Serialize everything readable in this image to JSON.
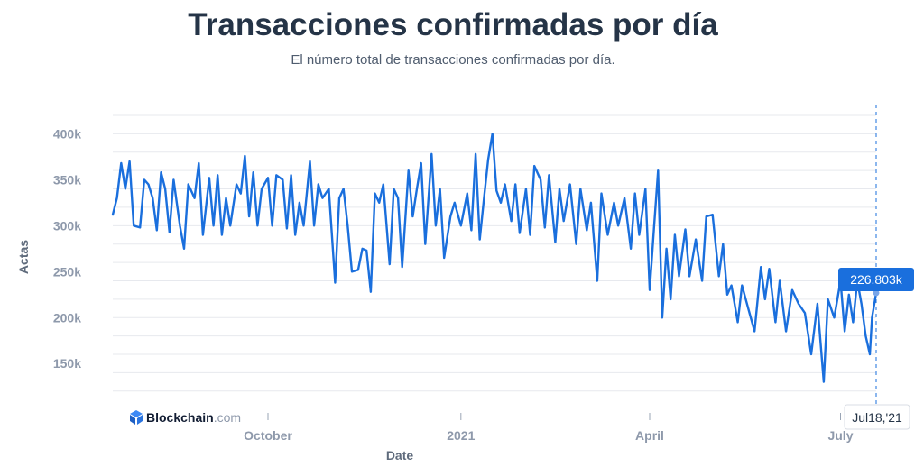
{
  "header": {
    "title": "Transacciones confirmadas por día",
    "subtitle": "El número total de transacciones confirmadas por día."
  },
  "brand": {
    "name": "Blockchain",
    "suffix": ".com",
    "icon": "blockchain-cube-icon"
  },
  "tooltip": {
    "value_label": "226.803k",
    "date_label": "Jul18,'21"
  },
  "colors": {
    "line": "#1a6fdd",
    "grid": "#e7e9ee",
    "title": "#253447",
    "axis_text": "#8e99ab"
  },
  "chart_data": {
    "type": "line",
    "title": "Transacciones confirmadas por día",
    "subtitle": "El número total de transacciones confirmadas por día.",
    "xlabel": "Date",
    "ylabel": "Actas",
    "ylim": [
      110000,
      420000
    ],
    "xlim": [
      "2020-07-19",
      "2021-07-18"
    ],
    "grid": true,
    "y_ticks": [
      {
        "value": 150000,
        "label": "150k"
      },
      {
        "value": 200000,
        "label": "200k"
      },
      {
        "value": 250000,
        "label": "250k"
      },
      {
        "value": 300000,
        "label": "300k"
      },
      {
        "value": 350000,
        "label": "350k"
      },
      {
        "value": 400000,
        "label": "400k"
      }
    ],
    "x_ticks": [
      {
        "date": "2020-10-01",
        "label": "October"
      },
      {
        "date": "2021-01-01",
        "label": "2021"
      },
      {
        "date": "2021-04-01",
        "label": "April"
      },
      {
        "date": "2021-07-01",
        "label": "July"
      }
    ],
    "series": [
      {
        "points": [
          [
            "2020-07-19",
            312000
          ],
          [
            "2020-07-21",
            330000
          ],
          [
            "2020-07-23",
            368000
          ],
          [
            "2020-07-25",
            340000
          ],
          [
            "2020-07-27",
            370000
          ],
          [
            "2020-07-29",
            300000
          ],
          [
            "2020-08-01",
            298000
          ],
          [
            "2020-08-03",
            350000
          ],
          [
            "2020-08-05",
            345000
          ],
          [
            "2020-08-07",
            330000
          ],
          [
            "2020-08-09",
            295000
          ],
          [
            "2020-08-11",
            358000
          ],
          [
            "2020-08-13",
            340000
          ],
          [
            "2020-08-15",
            293000
          ],
          [
            "2020-08-17",
            350000
          ],
          [
            "2020-08-20",
            300000
          ],
          [
            "2020-08-22",
            275000
          ],
          [
            "2020-08-24",
            345000
          ],
          [
            "2020-08-27",
            330000
          ],
          [
            "2020-08-29",
            368000
          ],
          [
            "2020-08-31",
            290000
          ],
          [
            "2020-09-03",
            352000
          ],
          [
            "2020-09-05",
            300000
          ],
          [
            "2020-09-07",
            355000
          ],
          [
            "2020-09-09",
            290000
          ],
          [
            "2020-09-11",
            330000
          ],
          [
            "2020-09-13",
            300000
          ],
          [
            "2020-09-16",
            345000
          ],
          [
            "2020-09-18",
            335000
          ],
          [
            "2020-09-20",
            376000
          ],
          [
            "2020-09-22",
            310000
          ],
          [
            "2020-09-24",
            358000
          ],
          [
            "2020-09-26",
            300000
          ],
          [
            "2020-09-28",
            340000
          ],
          [
            "2020-10-01",
            352000
          ],
          [
            "2020-10-03",
            300000
          ],
          [
            "2020-10-05",
            355000
          ],
          [
            "2020-10-08",
            350000
          ],
          [
            "2020-10-10",
            297000
          ],
          [
            "2020-10-12",
            355000
          ],
          [
            "2020-10-14",
            290000
          ],
          [
            "2020-10-16",
            325000
          ],
          [
            "2020-10-18",
            300000
          ],
          [
            "2020-10-21",
            370000
          ],
          [
            "2020-10-23",
            300000
          ],
          [
            "2020-10-25",
            345000
          ],
          [
            "2020-10-27",
            330000
          ],
          [
            "2020-10-30",
            340000
          ],
          [
            "2020-11-02",
            238000
          ],
          [
            "2020-11-04",
            330000
          ],
          [
            "2020-11-06",
            340000
          ],
          [
            "2020-11-08",
            300000
          ],
          [
            "2020-11-10",
            250000
          ],
          [
            "2020-11-13",
            252000
          ],
          [
            "2020-11-15",
            275000
          ],
          [
            "2020-11-17",
            273000
          ],
          [
            "2020-11-19",
            228000
          ],
          [
            "2020-11-21",
            335000
          ],
          [
            "2020-11-23",
            325000
          ],
          [
            "2020-11-25",
            345000
          ],
          [
            "2020-11-28",
            258000
          ],
          [
            "2020-11-30",
            340000
          ],
          [
            "2020-12-02",
            330000
          ],
          [
            "2020-12-04",
            255000
          ],
          [
            "2020-12-07",
            360000
          ],
          [
            "2020-12-09",
            310000
          ],
          [
            "2020-12-11",
            340000
          ],
          [
            "2020-12-13",
            368000
          ],
          [
            "2020-12-15",
            280000
          ],
          [
            "2020-12-18",
            378000
          ],
          [
            "2020-12-20",
            300000
          ],
          [
            "2020-12-22",
            340000
          ],
          [
            "2020-12-24",
            265000
          ],
          [
            "2020-12-27",
            310000
          ],
          [
            "2020-12-29",
            325000
          ],
          [
            "2021-01-01",
            300000
          ],
          [
            "2021-01-04",
            335000
          ],
          [
            "2021-01-06",
            295000
          ],
          [
            "2021-01-08",
            378000
          ],
          [
            "2021-01-10",
            285000
          ],
          [
            "2021-01-12",
            330000
          ],
          [
            "2021-01-14",
            372000
          ],
          [
            "2021-01-16",
            400000
          ],
          [
            "2021-01-18",
            338000
          ],
          [
            "2021-01-20",
            325000
          ],
          [
            "2021-01-22",
            345000
          ],
          [
            "2021-01-25",
            305000
          ],
          [
            "2021-01-27",
            345000
          ],
          [
            "2021-01-29",
            292000
          ],
          [
            "2021-02-01",
            340000
          ],
          [
            "2021-02-03",
            290000
          ],
          [
            "2021-02-05",
            365000
          ],
          [
            "2021-02-08",
            350000
          ],
          [
            "2021-02-10",
            298000
          ],
          [
            "2021-02-12",
            355000
          ],
          [
            "2021-02-15",
            282000
          ],
          [
            "2021-02-17",
            340000
          ],
          [
            "2021-02-19",
            305000
          ],
          [
            "2021-02-22",
            345000
          ],
          [
            "2021-02-25",
            280000
          ],
          [
            "2021-02-27",
            340000
          ],
          [
            "2021-03-02",
            295000
          ],
          [
            "2021-03-04",
            325000
          ],
          [
            "2021-03-07",
            240000
          ],
          [
            "2021-03-09",
            335000
          ],
          [
            "2021-03-12",
            290000
          ],
          [
            "2021-03-15",
            325000
          ],
          [
            "2021-03-17",
            300000
          ],
          [
            "2021-03-20",
            330000
          ],
          [
            "2021-03-23",
            275000
          ],
          [
            "2021-03-25",
            335000
          ],
          [
            "2021-03-27",
            290000
          ],
          [
            "2021-03-30",
            340000
          ],
          [
            "2021-04-01",
            230000
          ],
          [
            "2021-04-03",
            295000
          ],
          [
            "2021-04-05",
            360000
          ],
          [
            "2021-04-07",
            200000
          ],
          [
            "2021-04-09",
            275000
          ],
          [
            "2021-04-11",
            220000
          ],
          [
            "2021-04-13",
            290000
          ],
          [
            "2021-04-15",
            245000
          ],
          [
            "2021-04-18",
            296000
          ],
          [
            "2021-04-20",
            245000
          ],
          [
            "2021-04-23",
            285000
          ],
          [
            "2021-04-26",
            240000
          ],
          [
            "2021-04-28",
            310000
          ],
          [
            "2021-05-01",
            312000
          ],
          [
            "2021-05-04",
            245000
          ],
          [
            "2021-05-06",
            280000
          ],
          [
            "2021-05-08",
            225000
          ],
          [
            "2021-05-10",
            235000
          ],
          [
            "2021-05-13",
            195000
          ],
          [
            "2021-05-15",
            235000
          ],
          [
            "2021-05-18",
            210000
          ],
          [
            "2021-05-21",
            185000
          ],
          [
            "2021-05-24",
            255000
          ],
          [
            "2021-05-26",
            220000
          ],
          [
            "2021-05-28",
            253000
          ],
          [
            "2021-05-31",
            195000
          ],
          [
            "2021-06-02",
            240000
          ],
          [
            "2021-06-05",
            185000
          ],
          [
            "2021-06-08",
            230000
          ],
          [
            "2021-06-11",
            215000
          ],
          [
            "2021-06-14",
            205000
          ],
          [
            "2021-06-17",
            160000
          ],
          [
            "2021-06-20",
            215000
          ],
          [
            "2021-06-23",
            130000
          ],
          [
            "2021-06-25",
            220000
          ],
          [
            "2021-06-28",
            200000
          ],
          [
            "2021-07-01",
            240000
          ],
          [
            "2021-07-03",
            185000
          ],
          [
            "2021-07-05",
            225000
          ],
          [
            "2021-07-07",
            195000
          ],
          [
            "2021-07-09",
            240000
          ],
          [
            "2021-07-11",
            215000
          ],
          [
            "2021-07-13",
            180000
          ],
          [
            "2021-07-15",
            160000
          ],
          [
            "2021-07-16",
            200000
          ],
          [
            "2021-07-18",
            226803
          ]
        ]
      }
    ]
  }
}
